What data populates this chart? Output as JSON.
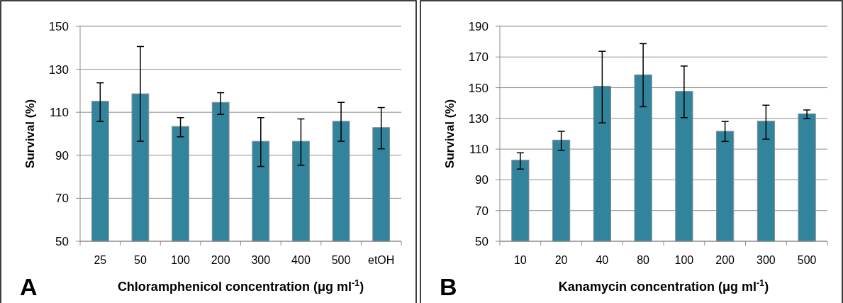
{
  "chart_data": [
    {
      "type": "bar",
      "xlabel": "Chloramphenicol concentration (μg ml$^{-1}$)",
      "ylabel": "Survival (%)",
      "annotations": [
        "A"
      ],
      "categories": [
        "25",
        "50",
        "100",
        "200",
        "300",
        "400",
        "500",
        "etOH"
      ],
      "color": "#31849b",
      "values": [
        115.1,
        118.6,
        103.4,
        114.6,
        96.5,
        96.5,
        105.8,
        102.9
      ],
      "errors": [
        [
          105.7,
          123.7
        ],
        [
          96.5,
          140.6
        ],
        [
          98.6,
          107.5
        ],
        [
          109,
          119.1
        ],
        [
          84.8,
          107.5
        ],
        [
          85.3,
          106.9
        ],
        [
          96.5,
          114.6
        ],
        [
          93,
          112.2
        ]
      ],
      "ylim": [
        50,
        150
      ],
      "yticks": [
        50,
        70,
        90,
        110,
        130,
        150
      ],
      "grid": "y"
    },
    {
      "type": "bar",
      "xlabel": "Kanamycin concentration (μg ml$^{-1}$)",
      "ylabel": "Survival (%)",
      "annotations": [
        "B"
      ],
      "categories": [
        "10",
        "20",
        "40",
        "80",
        "100",
        "200",
        "300",
        "500"
      ],
      "color": "#31849b",
      "values": [
        102.8,
        115.9,
        151,
        158.3,
        147.6,
        121.6,
        128.2,
        133
      ],
      "errors": [
        [
          97,
          107.6
        ],
        [
          109.2,
          121.6
        ],
        [
          127.1,
          173.7
        ],
        [
          137.6,
          178.7
        ],
        [
          130.5,
          164.1
        ],
        [
          115,
          128
        ],
        [
          116.5,
          138.6
        ],
        [
          129.8,
          135.5
        ]
      ],
      "ylim": [
        50,
        190
      ],
      "yticks": [
        50,
        70,
        90,
        110,
        130,
        150,
        170,
        190
      ],
      "grid": "y"
    }
  ]
}
